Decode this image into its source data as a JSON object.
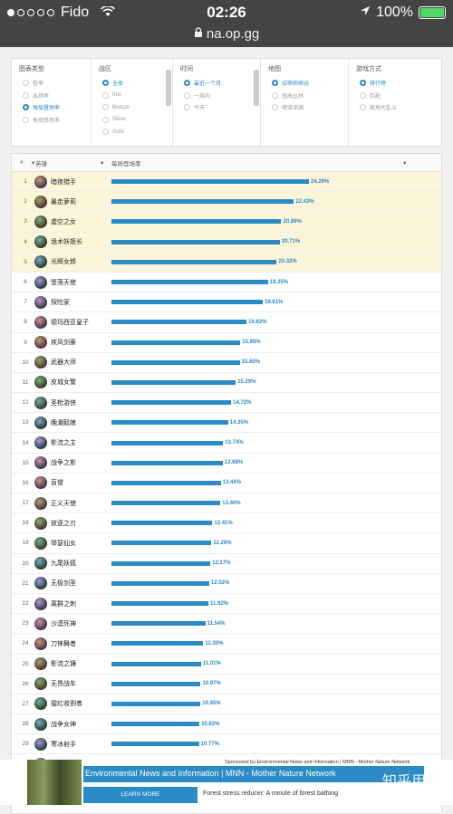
{
  "status_bar": {
    "carrier": "Fido",
    "time": "02:26",
    "battery": "100%"
  },
  "browser": {
    "url": "na.op.gg"
  },
  "filters": {
    "chart_type": {
      "header": "图表类型",
      "options": [
        "胜率",
        "出场率",
        "每局登场率",
        "每局禁用率"
      ],
      "selected": 2
    },
    "tier": {
      "header": "战区",
      "options": [
        "全体",
        "Iron",
        "Bronze",
        "Silver",
        "Gold"
      ],
      "selected": 0
    },
    "period": {
      "header": "时间",
      "options": [
        "最近一个月",
        "一周内",
        "今天"
      ],
      "selected": 0
    },
    "map": {
      "header": "地图",
      "options": [
        "召唤师峡谷",
        "扭曲丛林",
        "嚎哭深渊"
      ],
      "selected": 0
    },
    "mode": {
      "header": "游戏方式",
      "options": [
        "排行榜",
        "匹配",
        "极地大乱斗"
      ],
      "selected": 0
    }
  },
  "table": {
    "header": {
      "rank": "#",
      "champion": "英雄",
      "rate": "每局登场率"
    },
    "rows": [
      {
        "rank": "1",
        "name": "暗夜猎手",
        "value": 24.29,
        "label": "24.29%"
      },
      {
        "rank": "2",
        "name": "暴走萝莉",
        "value": 22.43,
        "label": "22.43%"
      },
      {
        "rank": "3",
        "name": "虚空之女",
        "value": 20.89,
        "label": "20.89%"
      },
      {
        "rank": "4",
        "name": "诡术妖姬长",
        "value": 20.71,
        "label": "20.71%"
      },
      {
        "rank": "5",
        "name": "光辉女郎",
        "value": 20.32,
        "label": "20.32%"
      },
      {
        "rank": "6",
        "name": "堕落天使",
        "value": 19.25,
        "label": "19.25%"
      },
      {
        "rank": "7",
        "name": "探险家",
        "value": 18.61,
        "label": "18.61%"
      },
      {
        "rank": "8",
        "name": "德玛西亚皇子",
        "value": 16.62,
        "label": "16.62%"
      },
      {
        "rank": "9",
        "name": "疾风剑豪",
        "value": 15.85,
        "label": "15.85%"
      },
      {
        "rank": "10",
        "name": "武器大师",
        "value": 15.8,
        "label": "15.80%"
      },
      {
        "rank": "11",
        "name": "皮城女警",
        "value": 15.29,
        "label": "15.29%"
      },
      {
        "rank": "12",
        "name": "圣枪游侠",
        "value": 14.72,
        "label": "14.72%"
      },
      {
        "rank": "13",
        "name": "晚潮毅娘",
        "value": 14.35,
        "label": "14.35%"
      },
      {
        "rank": "14",
        "name": "影流之主",
        "value": 13.74,
        "label": "13.74%"
      },
      {
        "rank": "15",
        "name": "战争之影",
        "value": 13.68,
        "label": "13.68%"
      },
      {
        "rank": "16",
        "name": "盲僧",
        "value": 13.44,
        "label": "13.44%"
      },
      {
        "rank": "17",
        "name": "正义天使",
        "value": 13.4,
        "label": "13.40%"
      },
      {
        "rank": "18",
        "name": "放逐之刃",
        "value": 12.41,
        "label": "12.41%"
      },
      {
        "rank": "19",
        "name": "琴瑟仙女",
        "value": 12.28,
        "label": "12.28%"
      },
      {
        "rank": "20",
        "name": "九尾妖狐",
        "value": 12.17,
        "label": "12.17%"
      },
      {
        "rank": "21",
        "name": "无极剑圣",
        "value": 12.02,
        "label": "12.02%"
      },
      {
        "rank": "22",
        "name": "离群之刺",
        "value": 11.92,
        "label": "11.92%"
      },
      {
        "rank": "23",
        "name": "沙漠死神",
        "value": 11.54,
        "label": "11.54%"
      },
      {
        "rank": "24",
        "name": "刀锋舞者",
        "value": 11.3,
        "label": "11.30%"
      },
      {
        "rank": "25",
        "name": "影流之镰",
        "value": 11.01,
        "label": "11.01%"
      },
      {
        "rank": "26",
        "name": "无畏战车",
        "value": 10.97,
        "label": "10.97%"
      },
      {
        "rank": "27",
        "name": "猩红收割者",
        "value": 10.95,
        "label": "10.95%"
      },
      {
        "rank": "28",
        "name": "战争女神",
        "value": 10.82,
        "label": "10.82%"
      },
      {
        "rank": "29",
        "name": "寒冰射手",
        "value": 10.77,
        "label": "10.77%"
      },
      {
        "rank": "30",
        "name": "血港鬼影",
        "value": 10.26,
        "label": "10.26%"
      },
      {
        "rank": "31",
        "name": "",
        "value": 0,
        "label": ""
      }
    ],
    "max_value": 24.29
  },
  "ad": {
    "sponsor": "Sponsored by Environmental News and Information | MNN - Mother Nature Network",
    "title": "Environmental News and Information | MNN - Mother Nature Network",
    "button": "LEARN MORE",
    "subtitle": "Forest stress reducer: A minute of forest bathing",
    "watermark": "知乎用户"
  },
  "colors": {
    "accent": "#2a8bc6",
    "highlight": "#fdf5d9",
    "topbar": "#444444"
  }
}
